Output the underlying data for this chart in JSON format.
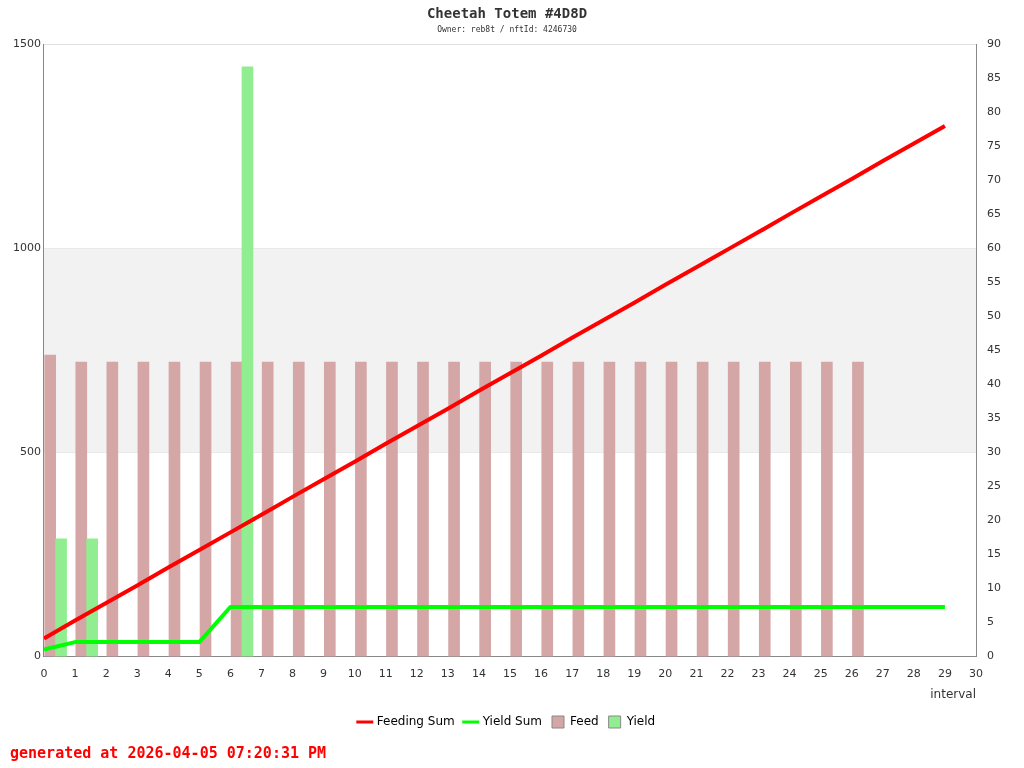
{
  "chart_data": {
    "type": "line",
    "title": "Cheetah Totem #4D8D",
    "subtitle": "Owner: reb8t / nftId: 4246730",
    "xlabel": "interval",
    "annotations": [
      "generated at 2026-04-05 07:20:31 PM"
    ],
    "xlim": [
      0,
      30
    ],
    "xticks": [
      0,
      1,
      2,
      3,
      4,
      5,
      6,
      7,
      8,
      9,
      10,
      11,
      12,
      13,
      14,
      15,
      16,
      17,
      18,
      19,
      20,
      21,
      22,
      23,
      24,
      25,
      26,
      27,
      28,
      29,
      30
    ],
    "ylim": [
      0,
      1500
    ],
    "yticks": [
      0,
      500,
      1000,
      1500
    ],
    "y2lim": [
      0,
      90
    ],
    "y2ticks": [
      0,
      5,
      10,
      15,
      20,
      25,
      30,
      35,
      40,
      45,
      50,
      55,
      60,
      65,
      70,
      75,
      80,
      85,
      90
    ],
    "grid": "y",
    "legend": "bottom",
    "marker": "none",
    "bands": [
      {
        "axis": "y",
        "from": 500,
        "to": 1000,
        "color": "#f2f2f2"
      }
    ],
    "series": [
      {
        "name": "Feeding Sum",
        "color": "#ff0000",
        "x": [
          0,
          1,
          2,
          3,
          4,
          5,
          6,
          7,
          8,
          9,
          10,
          11,
          12,
          13,
          14,
          15,
          16,
          17,
          18,
          19,
          20,
          21,
          22,
          23,
          24,
          25,
          26,
          27,
          28,
          29
        ],
        "values": [
          44,
          88,
          131,
          174,
          218,
          261,
          304,
          347,
          391,
          434,
          477,
          521,
          564,
          607,
          651,
          694,
          737,
          781,
          824,
          867,
          911,
          954,
          997,
          1040,
          1084,
          1127,
          1170,
          1214,
          1257,
          1300
        ]
      },
      {
        "name": "Yield Sum",
        "color": "#00ff00",
        "x": [
          0,
          1,
          2,
          3,
          4,
          5,
          6,
          7,
          8,
          9,
          10,
          11,
          12,
          13,
          14,
          15,
          16,
          17,
          18,
          19,
          20,
          21,
          22,
          23,
          24,
          25,
          26,
          27,
          28,
          29
        ],
        "values": [
          17,
          35,
          35,
          35,
          35,
          35,
          121,
          121,
          121,
          121,
          121,
          121,
          121,
          121,
          121,
          121,
          121,
          121,
          121,
          121,
          121,
          121,
          121,
          121,
          121,
          121,
          121,
          121,
          121,
          121
        ]
      },
      {
        "name": "Feed",
        "type": "bar",
        "axis": "y2",
        "color": "#d4a6a6",
        "x": [
          0.2,
          1.2,
          2.2,
          3.2,
          4.2,
          5.2,
          6.2,
          7.2,
          8.2,
          9.2,
          10.2,
          11.2,
          12.2,
          13.2,
          14.2,
          15.2,
          16.2,
          17.2,
          18.2,
          19.2,
          20.2,
          21.2,
          22.2,
          23.2,
          24.2,
          25.2,
          26.2
        ],
        "values": [
          44.3,
          43.3,
          43.3,
          43.3,
          43.3,
          43.3,
          43.3,
          43.3,
          43.3,
          43.3,
          43.3,
          43.3,
          43.3,
          43.3,
          43.3,
          43.3,
          43.3,
          43.3,
          43.3,
          43.3,
          43.3,
          43.3,
          43.3,
          43.3,
          43.3,
          43.3,
          43.3
        ]
      },
      {
        "name": "Yield",
        "type": "bar",
        "axis": "y2",
        "color": "#90ee90",
        "x": [
          0.55,
          1.55,
          6.55
        ],
        "values": [
          17.3,
          17.3,
          86.7
        ]
      }
    ]
  }
}
